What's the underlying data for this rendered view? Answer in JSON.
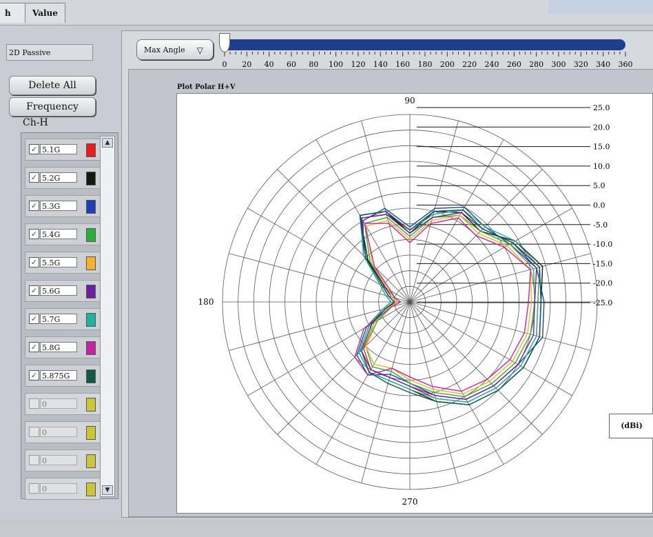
{
  "tabs": [
    {
      "label": "h"
    },
    {
      "label": "Value"
    }
  ],
  "mode": {
    "value": "2D Passive"
  },
  "buttons": {
    "delete_all": "Delete All",
    "frequency": "Frequency"
  },
  "channel_label": "Ch-H",
  "legend": [
    {
      "label": "5.1G",
      "checked": true,
      "color": "#e81d1d"
    },
    {
      "label": "5.2G",
      "checked": true,
      "color": "#121a12"
    },
    {
      "label": "5.3G",
      "checked": true,
      "color": "#1f3fae"
    },
    {
      "label": "5.4G",
      "checked": true,
      "color": "#2ab036"
    },
    {
      "label": "5.5G",
      "checked": true,
      "color": "#f5b22a"
    },
    {
      "label": "5.6G",
      "checked": true,
      "color": "#6a1fa0"
    },
    {
      "label": "5.7G",
      "checked": true,
      "color": "#1fb3a3"
    },
    {
      "label": "5.8G",
      "checked": true,
      "color": "#c5259b"
    },
    {
      "label": "5.875G",
      "checked": true,
      "color": "#0f5a4a"
    },
    {
      "label": "0",
      "checked": false,
      "color": "#c9c738"
    },
    {
      "label": "0",
      "checked": false,
      "color": "#c9c738"
    },
    {
      "label": "0",
      "checked": false,
      "color": "#c9c738"
    },
    {
      "label": "0",
      "checked": false,
      "color": "#c9c738"
    }
  ],
  "max_angle": {
    "label": "Max Angle",
    "ticks": [
      "0",
      "20",
      "40",
      "60",
      "80",
      "100",
      "120",
      "140",
      "160",
      "180",
      "200",
      "220",
      "240",
      "260",
      "280",
      "300",
      "320",
      "340",
      "360"
    ]
  },
  "chart_data": {
    "type": "polar",
    "title": "Plot Polar H+V",
    "unit": "(dBi)",
    "angle_labels": [
      "90",
      "180",
      "270"
    ],
    "radial_labels": [
      "25.0",
      "20.0",
      "15.0",
      "10.0",
      "5.0",
      "0.0",
      "-5.0",
      "-10.0",
      "-15.0",
      "-20.0",
      "-25.0"
    ],
    "r_range": [
      -35,
      25
    ],
    "angles": [
      0,
      15,
      30,
      45,
      60,
      75,
      90,
      105,
      120,
      135,
      150,
      165,
      180,
      195,
      210,
      225,
      240,
      255,
      270,
      285,
      300,
      315,
      330,
      345,
      360
    ],
    "series": [
      {
        "color": "#e81d1d",
        "values": [
          6,
          8,
          3,
          -2,
          -1,
          -6,
          -12,
          -6,
          -4,
          -15,
          -25,
          -28,
          -30,
          -28,
          -22,
          -14,
          -10,
          -10,
          -8,
          -3,
          2,
          4,
          6,
          7,
          6
        ]
      },
      {
        "color": "#121a12",
        "values": [
          7,
          9,
          4,
          -3,
          -2,
          -5,
          -13,
          -5,
          -3,
          -16,
          -26,
          -29,
          -31,
          -27,
          -20,
          -12,
          -9,
          -9,
          -7,
          -2,
          3,
          5,
          7,
          8,
          7
        ]
      },
      {
        "color": "#1f3fae",
        "values": [
          8,
          7,
          2,
          -1,
          0,
          -4,
          -11,
          -4,
          -5,
          -14,
          -24,
          -27,
          -29,
          -26,
          -19,
          -11,
          -8,
          -11,
          -9,
          -4,
          1,
          3,
          5,
          9,
          8
        ]
      },
      {
        "color": "#2ab036",
        "values": [
          5,
          6,
          2,
          -3,
          -3,
          -7,
          -14,
          -7,
          -6,
          -17,
          -27,
          -30,
          -32,
          -29,
          -23,
          -15,
          -11,
          -12,
          -9,
          -5,
          0,
          2,
          4,
          5,
          5
        ]
      },
      {
        "color": "#f5b22a",
        "values": [
          4,
          5,
          1,
          -4,
          -3,
          -8,
          -15,
          -8,
          -7,
          -18,
          -27,
          -29,
          -31,
          -28,
          -22,
          -15,
          -12,
          -13,
          -10,
          -6,
          -1,
          1,
          3,
          4,
          4
        ]
      },
      {
        "color": "#6a1fa0",
        "values": [
          5,
          7,
          3,
          -2,
          -2,
          -7,
          -13,
          -6,
          -4,
          -15,
          -25,
          -28,
          -30,
          -27,
          -21,
          -13,
          -10,
          -10,
          -8,
          -4,
          1,
          3,
          5,
          6,
          5
        ]
      },
      {
        "color": "#1fb3a3",
        "values": [
          6,
          8,
          4,
          -1,
          -1,
          -6,
          -12,
          -5,
          -3,
          -14,
          -24,
          -27,
          -29,
          -26,
          -20,
          -12,
          -9,
          -9,
          -7,
          -3,
          2,
          4,
          6,
          7,
          6
        ]
      },
      {
        "color": "#c5259b",
        "values": [
          3,
          5,
          0,
          -5,
          -4,
          -9,
          -16,
          -9,
          -6,
          -19,
          -28,
          -30,
          -32,
          -29,
          -18,
          -10,
          -8,
          -13,
          -11,
          -7,
          -2,
          0,
          2,
          3,
          3
        ]
      },
      {
        "color": "#0f5a4a",
        "values": [
          7,
          8,
          3,
          -2,
          -1,
          -5,
          -12,
          -5,
          -3,
          -15,
          -25,
          -28,
          -30,
          -27,
          -21,
          -13,
          -9,
          -8,
          -6,
          -2,
          3,
          5,
          7,
          8,
          7
        ]
      }
    ]
  }
}
